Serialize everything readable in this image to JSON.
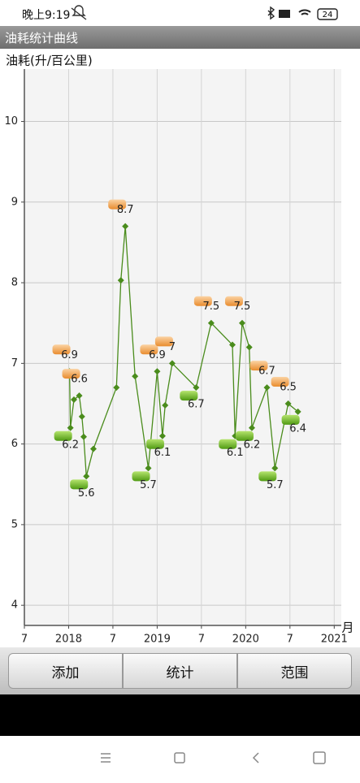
{
  "status_bar": {
    "time": "晚上9:19",
    "battery": "24"
  },
  "header": {
    "title": "油耗统计曲线"
  },
  "chart_data": {
    "type": "line",
    "y_label": "油耗(升/百公里)",
    "x_label": "月",
    "color": "#4a8c1c",
    "max_color": "#f0a050",
    "min_color": "#6cb81c",
    "x": [
      2018.01,
      2018.02,
      2018.06,
      2018.12,
      2018.15,
      2018.17,
      2018.2,
      2018.28,
      2018.54,
      2018.59,
      2018.64,
      2018.75,
      2018.9,
      2019.0,
      2019.06,
      2019.09,
      2019.17,
      2019.44,
      2019.61,
      2019.85,
      2019.88,
      2019.96,
      2020.04,
      2020.07,
      2020.24,
      2020.33,
      2020.48,
      2020.59
    ],
    "values": [
      6.9,
      6.2,
      6.55,
      6.6,
      6.34,
      6.09,
      5.6,
      5.94,
      6.7,
      8.03,
      8.7,
      6.84,
      5.7,
      6.9,
      6.1,
      6.48,
      7.0,
      6.7,
      7.5,
      7.23,
      6.1,
      7.5,
      7.2,
      6.2,
      6.7,
      5.7,
      6.5,
      6.4
    ],
    "xlim": [
      2017.5,
      2021.08
    ],
    "xticks": [
      {
        "value": 2017.5,
        "label": "7"
      },
      2018,
      {
        "value": 2018.5,
        "label": "7"
      },
      2019,
      {
        "value": 2019.5,
        "label": "7"
      },
      2020,
      {
        "value": 2020.5,
        "label": "7"
      },
      2021
    ],
    "ylim": [
      3.75,
      10.65
    ],
    "yticks": [
      4,
      5,
      6,
      7,
      8,
      9,
      10
    ],
    "grid": true
  },
  "buttons": [
    "添加",
    "统计",
    "范围"
  ]
}
